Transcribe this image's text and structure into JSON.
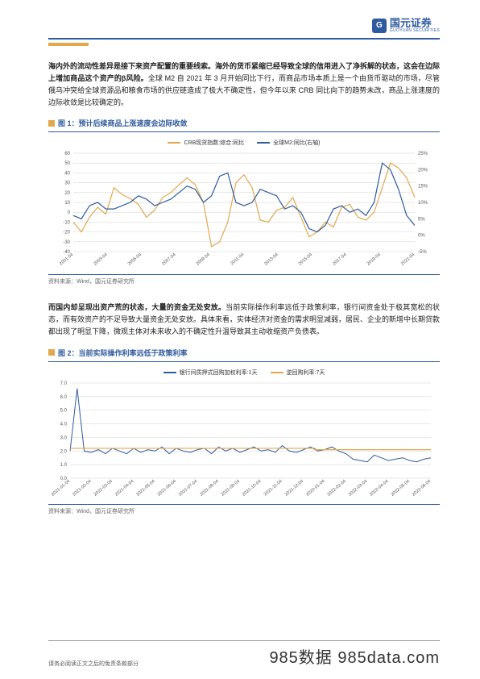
{
  "logo": {
    "cn": "国元证券",
    "en": "GUOYUAN SECURITIES"
  },
  "para1": {
    "bold1": "海内外的流动性差异是接下来资产配置的重要线索。海外的货币紧缩已经导致全球的信用进入了净拆解的状态，这会在边际上增加商品这个资产的β风险。",
    "rest": "全球 M2 自 2021 年 3 月开始同比下行，而商品市场本质上是一个由货币驱动的市场，尽管俄乌冲突给全球资源品和粮食市场的供应链造成了极大不确定性，但今年以来 CRB 同比向下的趋势未改，商品上涨速度的边际收敛是比较确定的。"
  },
  "fig1": {
    "label": "图 1：预计后续商品上涨速度会边际收敛",
    "legend": [
      {
        "label": "CRB现货指数:综合:同比",
        "color": "#e3a84e"
      },
      {
        "label": "全球M2:同比(右轴)",
        "color": "#2e5b9f"
      }
    ],
    "chart": {
      "type": "line-dual-axis",
      "background_color": "#ffffff",
      "grid_color": "#d0d0d0",
      "left_ylim": [
        -40,
        60
      ],
      "left_ytick_step": 10,
      "right_ylim": [
        -5,
        25
      ],
      "right_ytick_step": 5,
      "right_format": "%",
      "x_labels": [
        "2001-04",
        "2003-04",
        "2005-04",
        "2007-04",
        "2009-04",
        "2011-04",
        "2013-04",
        "2015-04",
        "2017-04",
        "2019-04",
        "2021-04"
      ],
      "series": [
        {
          "name": "crb",
          "color": "#e3a84e",
          "axis": "left",
          "line_width": 1.2,
          "y": [
            -10,
            -20,
            -5,
            5,
            -2,
            25,
            18,
            14,
            8,
            -5,
            2,
            15,
            20,
            28,
            35,
            28,
            10,
            -35,
            -30,
            -10,
            30,
            38,
            25,
            -8,
            -10,
            2,
            5,
            15,
            -5,
            -25,
            -20,
            -10,
            -15,
            5,
            8,
            -5,
            -8,
            0,
            25,
            50,
            45,
            35,
            15
          ]
        },
        {
          "name": "m2",
          "color": "#2e5b9f",
          "axis": "right",
          "line_width": 1.2,
          "y": [
            6,
            5,
            9,
            10,
            8,
            8,
            9,
            10,
            12,
            11,
            9,
            10,
            11,
            13,
            15,
            14,
            10,
            12,
            18,
            19,
            10,
            9,
            10,
            14,
            13,
            12,
            8,
            9,
            7,
            2,
            1,
            3,
            8,
            9,
            7,
            8,
            6,
            10,
            22,
            20,
            14,
            6,
            3
          ]
        }
      ]
    },
    "source": "资料来源：Wind，国元证券研究所"
  },
  "para2": {
    "bold1": "而国内却呈现出资产荒的状态，大量的资金无处安放。",
    "rest": "当前实际操作利率远低于政策利率，银行间资金处于极其宽松的状态，而有效资产的不足导致大量资金无处安放。具体来看，实体经济对资金的需求明显减弱，居民、企业的新增中长期贷款都出现了明显下降，微观主体对未来收入的不确定性升温导致其主动收缩资产负债表。"
  },
  "fig2": {
    "label": "图 2：当前实际操作利率远低于政策利率",
    "legend": [
      {
        "label": "银行间质押式回购加权利率:1天",
        "color": "#2e5b9f"
      },
      {
        "label": "逆回购利率:7天",
        "color": "#e3a84e"
      }
    ],
    "chart": {
      "type": "line",
      "background_color": "#ffffff",
      "grid_color": "#d0d0d0",
      "ylim": [
        0,
        7
      ],
      "ytick_step": 1,
      "y_decimals": 1,
      "x_labels": [
        "2021-01-04",
        "2021-02-04",
        "2021-03-04",
        "2021-04-04",
        "2021-05-04",
        "2021-06-04",
        "2021-07-04",
        "2021-08-04",
        "2021-09-04",
        "2021-10-04",
        "2021-11-04",
        "2021-12-04",
        "2022-01-04",
        "2022-02-04",
        "2022-03-04",
        "2022-04-04",
        "2022-05-04",
        "2022-06-04"
      ],
      "series": [
        {
          "name": "repo1d",
          "color": "#2e5b9f",
          "line_width": 1.0,
          "y": [
            2.0,
            6.6,
            2.0,
            1.9,
            2.1,
            1.8,
            2.2,
            2.0,
            1.8,
            2.2,
            1.9,
            2.1,
            2.0,
            2.3,
            1.8,
            2.2,
            2.0,
            1.9,
            2.1,
            2.2,
            1.8,
            2.3,
            2.0,
            2.2,
            1.9,
            2.1,
            2.3,
            2.0,
            2.1,
            1.9,
            2.4,
            2.0,
            1.9,
            2.1,
            2.3,
            2.0,
            2.1,
            2.3,
            2.0,
            1.8,
            1.4,
            1.3,
            1.2,
            1.7,
            1.5,
            1.3,
            1.4,
            1.5,
            1.3,
            1.2,
            1.4,
            1.5
          ]
        },
        {
          "name": "reverse7d",
          "color": "#e3a84e",
          "line_width": 1.2,
          "y_const": 2.2,
          "y_const_after": 2.1,
          "break_at": 0.68
        }
      ]
    },
    "source": "资料来源：Wind，国元证券研究所"
  },
  "footer": {
    "disclaimer": "请务必阅读正文之后的免责条款部分",
    "watermark": "985数据 985data.com"
  }
}
